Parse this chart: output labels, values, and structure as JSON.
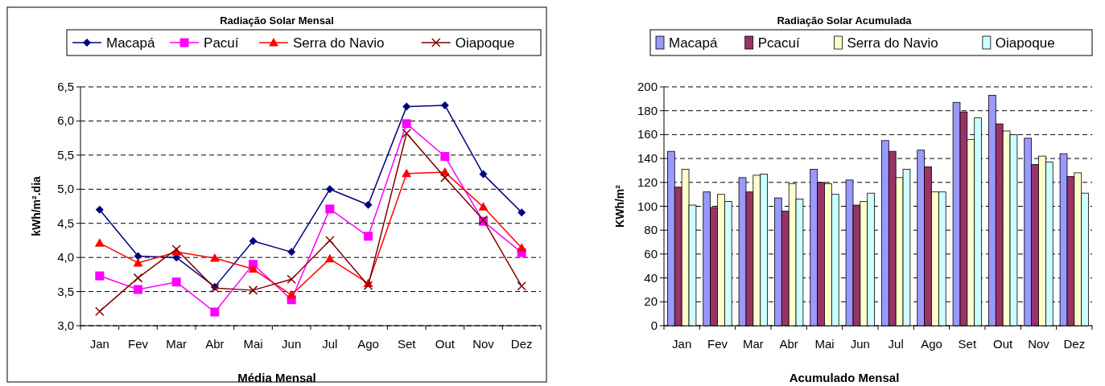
{
  "chart_data": [
    {
      "type": "line",
      "title": "Radiação Solar Mensal",
      "xlabel": "Média Mensal",
      "ylabel": "kWh/m².dia",
      "categories": [
        "Jan",
        "Fev",
        "Mar",
        "Abr",
        "Mai",
        "Jun",
        "Jul",
        "Ago",
        "Set",
        "Out",
        "Nov",
        "Dez"
      ],
      "series": [
        {
          "name": "Macapá",
          "color": "#000080",
          "marker": "diamond",
          "values": [
            4.7,
            4.02,
            4.0,
            3.57,
            4.24,
            4.08,
            5.0,
            4.77,
            6.21,
            6.23,
            5.22,
            4.66
          ]
        },
        {
          "name": "Pacuí",
          "color": "#ff00ff",
          "marker": "square",
          "values": [
            3.73,
            3.53,
            3.64,
            3.2,
            3.9,
            3.38,
            4.71,
            4.31,
            5.96,
            5.48,
            4.53,
            4.07
          ]
        },
        {
          "name": "Serra do Navio",
          "color": "#ff0000",
          "marker": "triangle",
          "values": [
            4.21,
            3.92,
            4.08,
            3.99,
            3.83,
            3.45,
            3.98,
            3.62,
            5.23,
            5.25,
            4.74,
            4.14
          ]
        },
        {
          "name": "Oiapoque",
          "color": "#800000",
          "marker": "cross",
          "values": [
            3.21,
            3.7,
            4.12,
            3.55,
            3.52,
            3.68,
            4.25,
            3.59,
            5.82,
            5.17,
            4.55,
            3.58
          ]
        }
      ],
      "ylim": [
        3,
        6.5
      ],
      "yticks": [
        {
          "value": 3,
          "label": "3,0"
        },
        {
          "value": 3.5,
          "label": "3,5"
        },
        {
          "value": 4,
          "label": "4,0"
        },
        {
          "value": 4.5,
          "label": "4,5"
        },
        {
          "value": 5,
          "label": "5,0"
        },
        {
          "value": 5.5,
          "label": "5,5"
        },
        {
          "value": 6,
          "label": "6,0"
        },
        {
          "value": 6.5,
          "label": "6,5"
        }
      ],
      "grid": "y",
      "legend": "top"
    },
    {
      "type": "bar",
      "title": "Radiação Solar Acumulada",
      "xlabel": "Acumulado Mensal",
      "ylabel": "KWh/m²",
      "categories": [
        "Jan",
        "Fev",
        "Mar",
        "Abr",
        "Mai",
        "Jun",
        "Jul",
        "Ago",
        "Set",
        "Out",
        "Nov",
        "Dez"
      ],
      "series": [
        {
          "name": "Macapá",
          "color": "#9999ff",
          "values": [
            146,
            112,
            124,
            107,
            131,
            122,
            155,
            147,
            187,
            193,
            157,
            144
          ]
        },
        {
          "name": "Pcacuí",
          "color": "#993366",
          "values": [
            116,
            99,
            112,
            96,
            120,
            101,
            146,
            133,
            179,
            169,
            135,
            125
          ]
        },
        {
          "name": "Serra do Navio",
          "color": "#ffffcc",
          "values": [
            131,
            110,
            126,
            119,
            119,
            104,
            124,
            112,
            156,
            163,
            142,
            128
          ]
        },
        {
          "name": "Oiapoque",
          "color": "#ccffff",
          "values": [
            101,
            104,
            127,
            106,
            110,
            111,
            131,
            112,
            174,
            160,
            137,
            111
          ]
        }
      ],
      "ylim": [
        0,
        200
      ],
      "yticks": [
        0,
        20,
        40,
        60,
        80,
        100,
        120,
        140,
        160,
        180,
        200
      ],
      "grid": "y",
      "legend": "top"
    }
  ]
}
